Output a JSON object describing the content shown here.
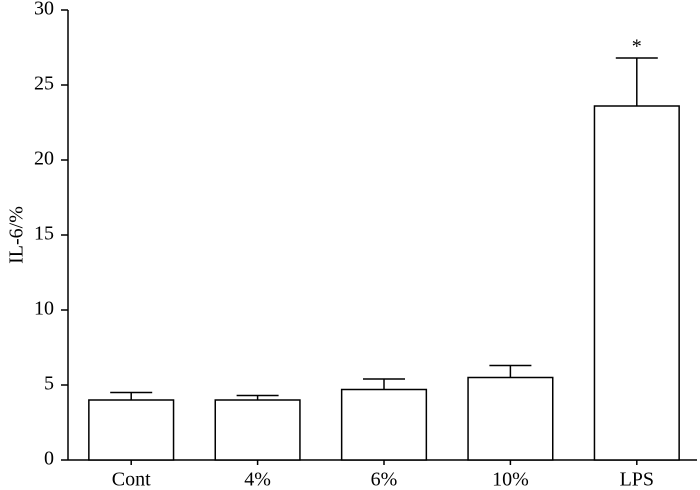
{
  "chart_data": {
    "type": "bar",
    "y_label": "IL-6/%",
    "categories": [
      "Cont",
      "4%",
      "6%",
      "10%",
      "LPS"
    ],
    "values": [
      4.0,
      4.0,
      4.7,
      5.5,
      23.6
    ],
    "errors": [
      0.5,
      0.3,
      0.7,
      0.8,
      3.2
    ],
    "significance": [
      null,
      null,
      null,
      null,
      "*"
    ],
    "color": "#ffffff",
    "ylim": [
      0,
      30
    ],
    "yticks": [
      0,
      5,
      10,
      15,
      20,
      25,
      30
    ],
    "grid": false
  }
}
